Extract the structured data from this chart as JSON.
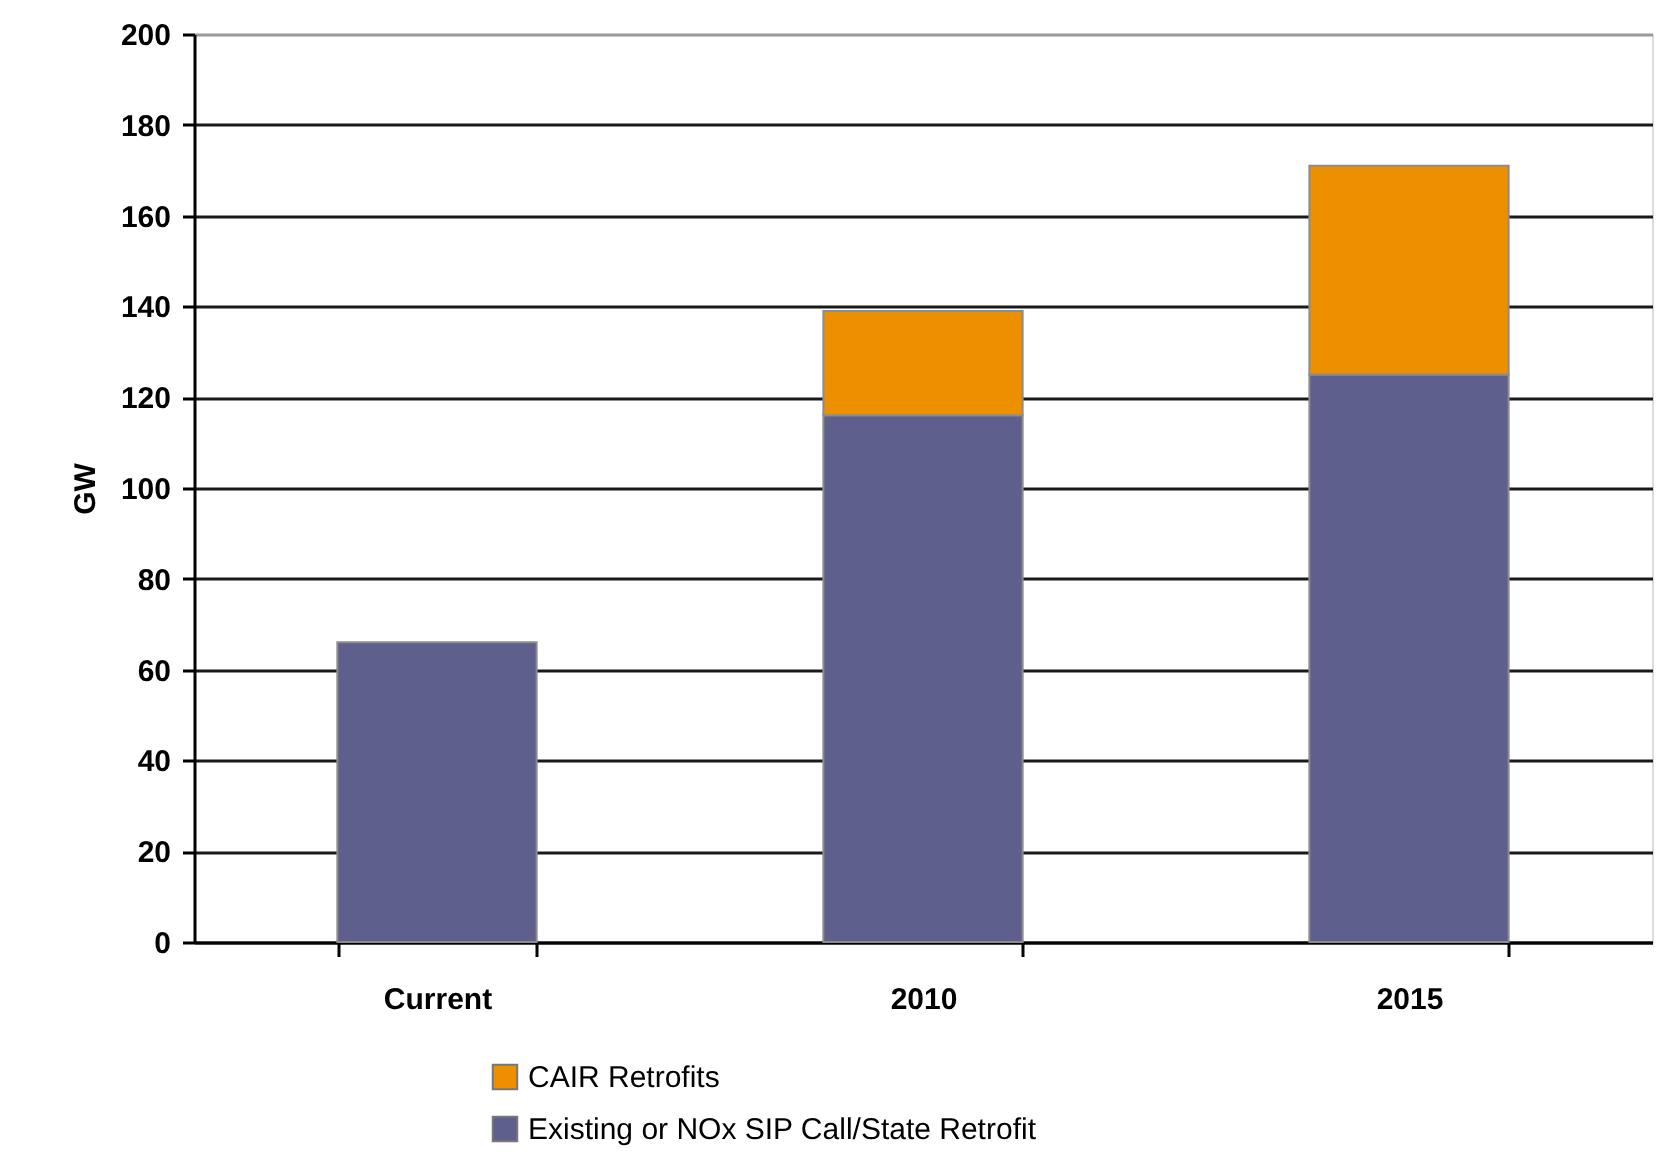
{
  "chart_data": {
    "type": "bar",
    "stacked": true,
    "categories": [
      "Current",
      "2010",
      "2015"
    ],
    "ylabel": "GW",
    "ylim": [
      0,
      200
    ],
    "yticks": [
      0,
      20,
      40,
      60,
      80,
      100,
      120,
      140,
      160,
      180,
      200
    ],
    "grid": "y",
    "legend": "bottom",
    "series": [
      {
        "name": "Existing or NOx SIP Call/State Retrofit",
        "color": "#5f5f8e",
        "values": [
          66,
          116,
          125
        ]
      },
      {
        "name": "CAIR Retrofits",
        "color": "#ec9000",
        "values": [
          null,
          23,
          46
        ]
      }
    ]
  }
}
